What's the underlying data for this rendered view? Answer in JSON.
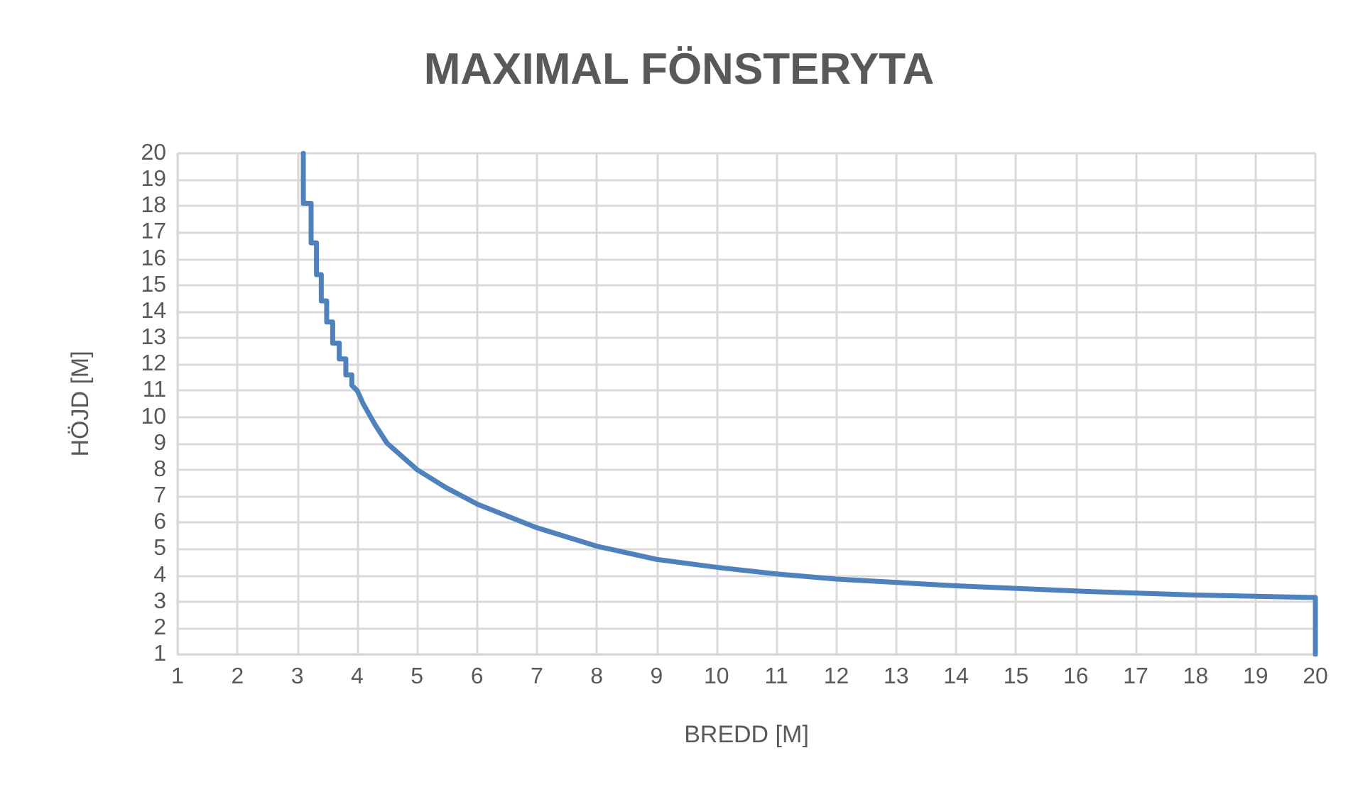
{
  "chart_data": {
    "type": "line",
    "title": "MAXIMAL FÖNSTERYTA",
    "xlabel": "BREDD [M]",
    "ylabel": "HÖJD [M]",
    "xlim": [
      1,
      20
    ],
    "xticks": [
      1,
      2,
      3,
      4,
      5,
      6,
      7,
      8,
      9,
      10,
      11,
      12,
      13,
      14,
      15,
      16,
      17,
      18,
      19,
      20
    ],
    "ylim": [
      1,
      20
    ],
    "yticks": [
      1,
      2,
      3,
      4,
      5,
      6,
      7,
      8,
      9,
      10,
      11,
      12,
      13,
      14,
      15,
      16,
      17,
      18,
      19,
      20
    ],
    "grid": true,
    "marker": "none",
    "line_style": "solid",
    "series": [
      {
        "color": "#4f81bd",
        "x": [
          3.1,
          3.1,
          3.23,
          3.23,
          3.32,
          3.32,
          3.4,
          3.4,
          3.49,
          3.49,
          3.59,
          3.59,
          3.7,
          3.7,
          3.81,
          3.81,
          3.91,
          3.91,
          4.0,
          4.1,
          4.3,
          4.5,
          5.0,
          5.5,
          6.0,
          7.0,
          8.0,
          9.0,
          10.0,
          11.0,
          12.0,
          14.0,
          16.0,
          18.0,
          20.0,
          20.0
        ],
        "values": [
          20,
          18.1,
          18.1,
          16.6,
          16.6,
          15.4,
          15.4,
          14.4,
          14.4,
          13.6,
          13.6,
          12.8,
          12.8,
          12.2,
          12.2,
          11.6,
          11.6,
          11.2,
          11.0,
          10.5,
          9.7,
          9.0,
          8.0,
          7.3,
          6.7,
          5.8,
          5.1,
          4.6,
          4.3,
          4.05,
          3.85,
          3.6,
          3.4,
          3.25,
          3.15,
          1
        ]
      }
    ]
  }
}
